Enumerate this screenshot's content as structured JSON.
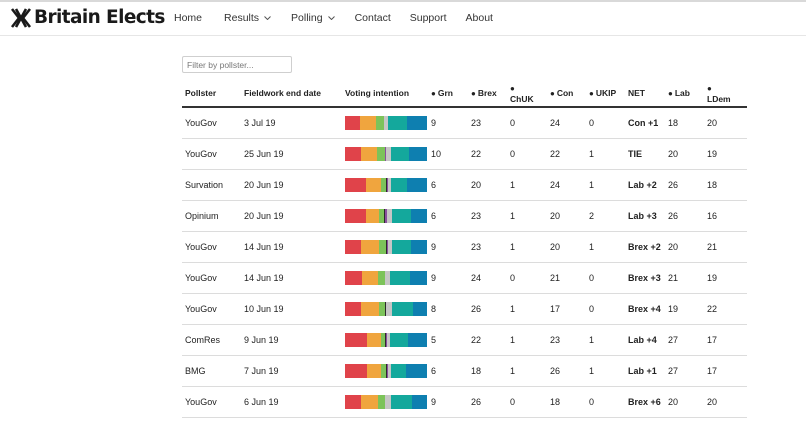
{
  "brand": {
    "name": "Britain Elects"
  },
  "nav": {
    "items": [
      {
        "label": "Home",
        "dropdown": false
      },
      {
        "label": "Results",
        "dropdown": true
      },
      {
        "label": "Polling",
        "dropdown": true
      },
      {
        "label": "Contact",
        "dropdown": false
      },
      {
        "label": "Support",
        "dropdown": false
      },
      {
        "label": "About",
        "dropdown": false
      }
    ]
  },
  "filter": {
    "placeholder": "Filter by pollster..."
  },
  "colors": {
    "con": "#0e7fb0",
    "lab": "#e0434a",
    "ldem": "#f0a53e",
    "brex": "#14a89c",
    "grn": "#7cc35a",
    "ukip": "#8a4f9e",
    "chuk": "#2b2b2b",
    "other": "#c6c6c6"
  },
  "table": {
    "headers": {
      "pollster": "Pollster",
      "date": "Fieldwork end date",
      "vi": "Voting intention",
      "grn": "Grn",
      "brex": "Brex",
      "chuk": "ChUK",
      "con": "Con",
      "ukip": "UKIP",
      "net": "NET",
      "lab": "Lab",
      "ldem": "LDem"
    },
    "rows": [
      {
        "pollster": "YouGov",
        "date": "3 Jul 19",
        "grn": "9",
        "brex": "23",
        "chuk": "0",
        "con": "24",
        "ukip": "0",
        "net": "Con +1",
        "lab": "18",
        "ldem": "20"
      },
      {
        "pollster": "YouGov",
        "date": "25 Jun 19",
        "grn": "10",
        "brex": "22",
        "chuk": "0",
        "con": "22",
        "ukip": "1",
        "net": "TIE",
        "lab": "20",
        "ldem": "19"
      },
      {
        "pollster": "Survation",
        "date": "20 Jun 19",
        "grn": "6",
        "brex": "20",
        "chuk": "1",
        "con": "24",
        "ukip": "1",
        "net": "Lab +2",
        "lab": "26",
        "ldem": "18"
      },
      {
        "pollster": "Opinium",
        "date": "20 Jun 19",
        "grn": "6",
        "brex": "23",
        "chuk": "1",
        "con": "20",
        "ukip": "2",
        "net": "Lab +3",
        "lab": "26",
        "ldem": "16"
      },
      {
        "pollster": "YouGov",
        "date": "14 Jun 19",
        "grn": "9",
        "brex": "23",
        "chuk": "1",
        "con": "20",
        "ukip": "1",
        "net": "Brex +2",
        "lab": "20",
        "ldem": "21"
      },
      {
        "pollster": "YouGov",
        "date": "14 Jun 19",
        "grn": "9",
        "brex": "24",
        "chuk": "0",
        "con": "21",
        "ukip": "0",
        "net": "Brex +3",
        "lab": "21",
        "ldem": "19"
      },
      {
        "pollster": "YouGov",
        "date": "10 Jun 19",
        "grn": "8",
        "brex": "26",
        "chuk": "1",
        "con": "17",
        "ukip": "0",
        "net": "Brex +4",
        "lab": "19",
        "ldem": "22"
      },
      {
        "pollster": "ComRes",
        "date": "9 Jun 19",
        "grn": "5",
        "brex": "22",
        "chuk": "1",
        "con": "23",
        "ukip": "1",
        "net": "Lab +4",
        "lab": "27",
        "ldem": "17"
      },
      {
        "pollster": "BMG",
        "date": "7 Jun 19",
        "grn": "6",
        "brex": "18",
        "chuk": "1",
        "con": "26",
        "ukip": "1",
        "net": "Lab +1",
        "lab": "27",
        "ldem": "17"
      },
      {
        "pollster": "YouGov",
        "date": "6 Jun 19",
        "grn": "9",
        "brex": "26",
        "chuk": "0",
        "con": "18",
        "ukip": "0",
        "net": "Brex +6",
        "lab": "20",
        "ldem": "20"
      }
    ]
  }
}
